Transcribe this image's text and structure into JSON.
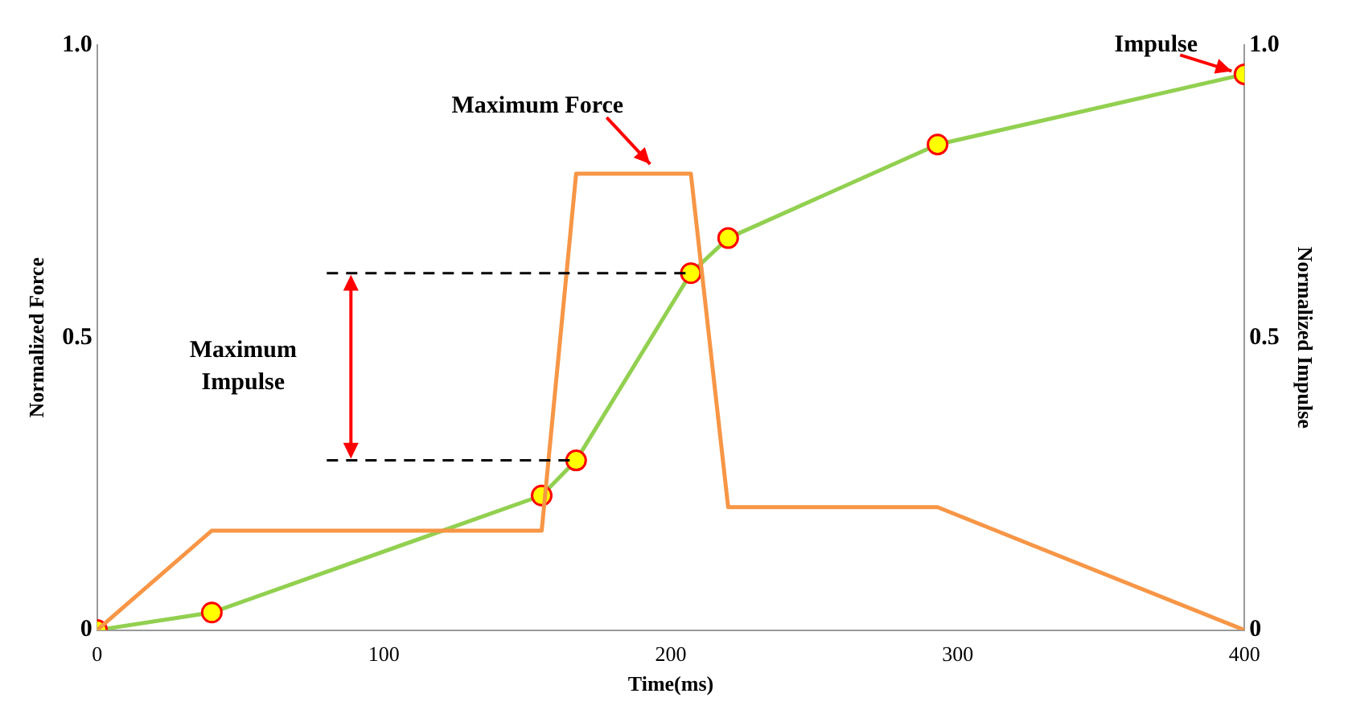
{
  "chart_data": {
    "type": "line",
    "xlabel": "Time(ms)",
    "ylabel": "Normalized Force",
    "y2label": "Normalized Impulse",
    "xlim": [
      0,
      400
    ],
    "xticks": [
      0,
      100,
      200,
      300,
      400
    ],
    "ylim": [
      0,
      1
    ],
    "yticks": [
      {
        "value": 0,
        "label": "0"
      },
      0.5,
      {
        "value": 1,
        "label": "1.0"
      }
    ],
    "y2lim": [
      0,
      1
    ],
    "y2ticks": [
      {
        "value": 0,
        "label": "0"
      },
      0.5,
      {
        "value": 1,
        "label": "1.0"
      }
    ],
    "grid": false,
    "legend": false,
    "series": [
      {
        "color": "#f79646",
        "marker": "none",
        "x": [
          0,
          40,
          155,
          167,
          207,
          220,
          293,
          400
        ],
        "values": [
          0,
          0.17,
          0.17,
          0.78,
          0.78,
          0.21,
          0.21,
          0
        ]
      },
      {
        "color": "#92d050",
        "marker": "circle",
        "axis": "y2",
        "x": [
          0,
          40,
          155,
          167,
          207,
          220,
          293,
          400
        ],
        "values": [
          0,
          0.03,
          0.23,
          0.29,
          0.61,
          0.67,
          0.83,
          0.95
        ]
      }
    ],
    "annotations": [
      {
        "text": "Maximum Force",
        "x": 190,
        "y": 0.78
      },
      {
        "text": "Impulse",
        "x": 400,
        "y": 0.95
      },
      "Maximum\nImpulse"
    ]
  }
}
